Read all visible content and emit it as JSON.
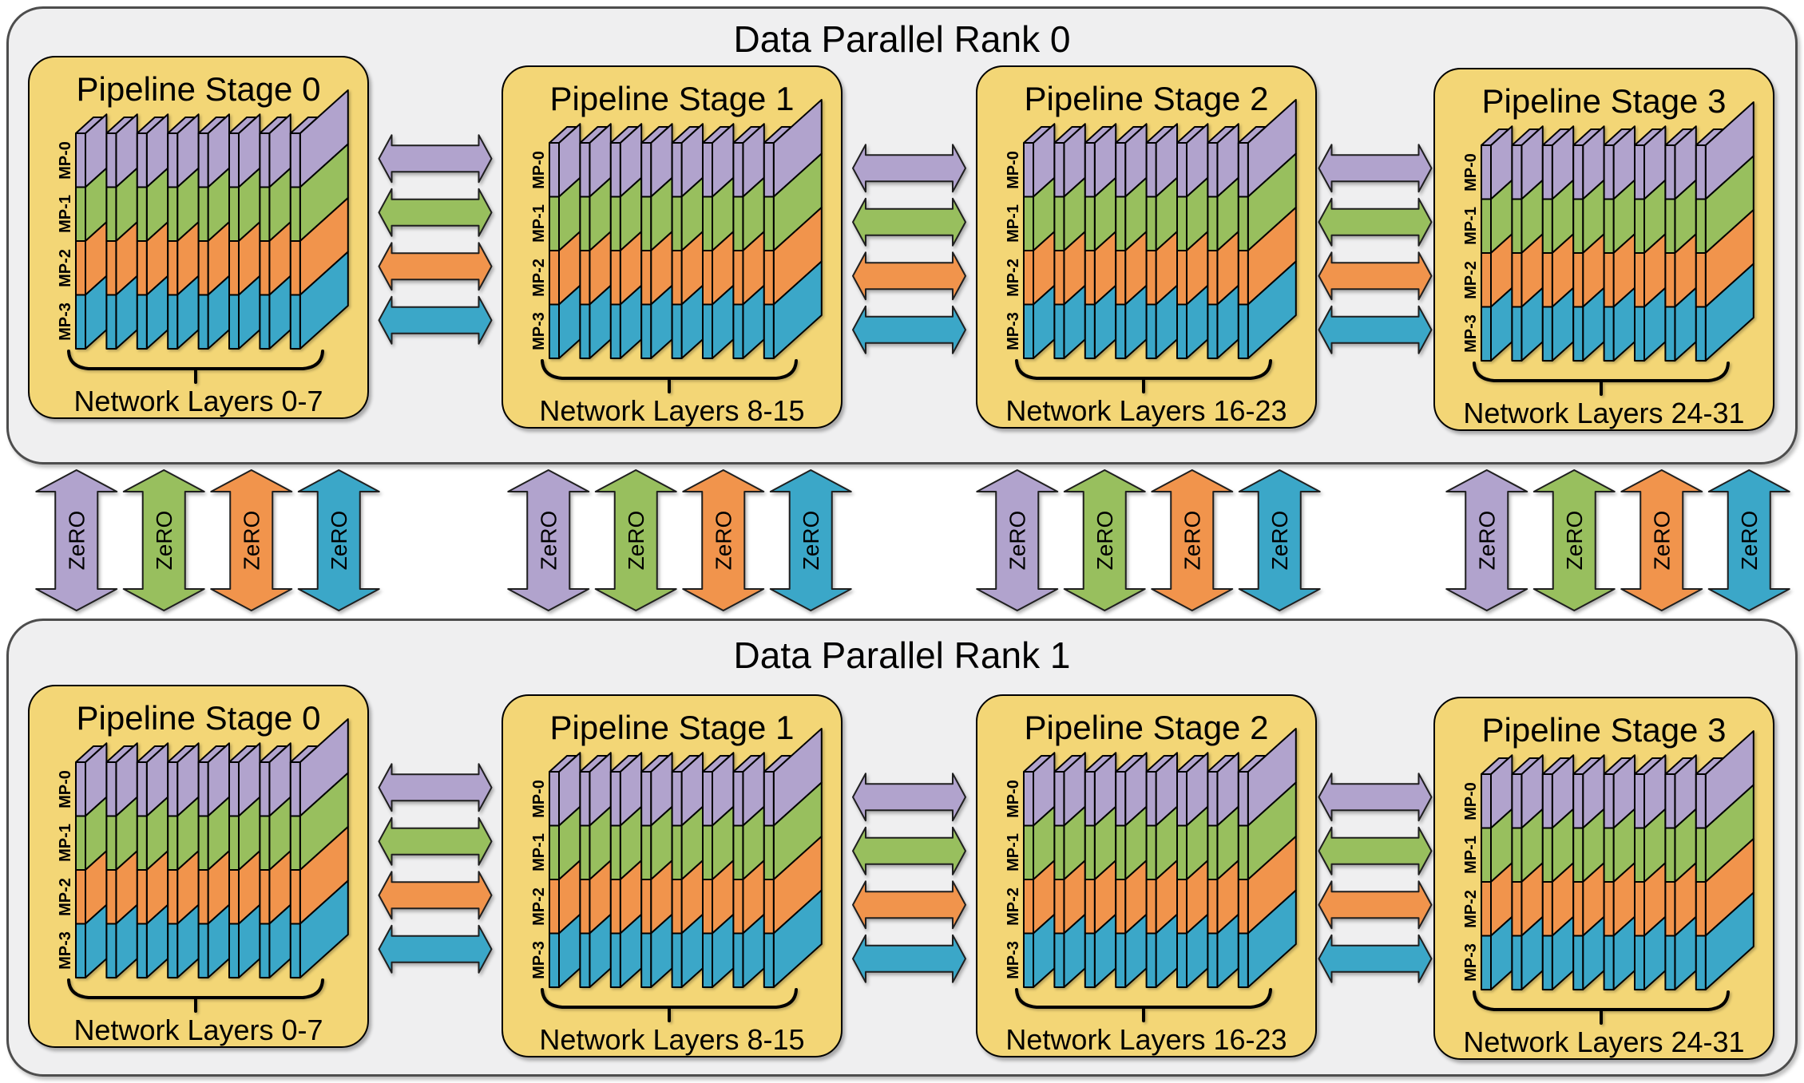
{
  "colors": {
    "mp": [
      "#b1a3cd",
      "#98bf5e",
      "#f1944c",
      "#3ba7c8"
    ],
    "stage_fill": "#f3d676",
    "panel_fill": "#efeff0",
    "panel_stroke": "#4d4d4d",
    "outline": "#000000"
  },
  "mp_labels": [
    "MP-0",
    "MP-1",
    "MP-2",
    "MP-3"
  ],
  "zero_label": "ZeRO",
  "cards_per_stage": 8,
  "panels": [
    {
      "title": "Data Parallel Rank 0",
      "stages": [
        {
          "title": "Pipeline Stage 0",
          "layers_label": "Network Layers 0-7"
        },
        {
          "title": "Pipeline Stage 1",
          "layers_label": "Network Layers 8-15"
        },
        {
          "title": "Pipeline Stage 2",
          "layers_label": "Network Layers 16-23"
        },
        {
          "title": "Pipeline Stage 3",
          "layers_label": "Network Layers 24-31"
        }
      ]
    },
    {
      "title": "Data Parallel Rank 1",
      "stages": [
        {
          "title": "Pipeline Stage 0",
          "layers_label": "Network Layers 0-7"
        },
        {
          "title": "Pipeline Stage 1",
          "layers_label": "Network Layers 8-15"
        },
        {
          "title": "Pipeline Stage 2",
          "layers_label": "Network Layers 16-23"
        },
        {
          "title": "Pipeline Stage 3",
          "layers_label": "Network Layers 24-31"
        }
      ]
    }
  ]
}
